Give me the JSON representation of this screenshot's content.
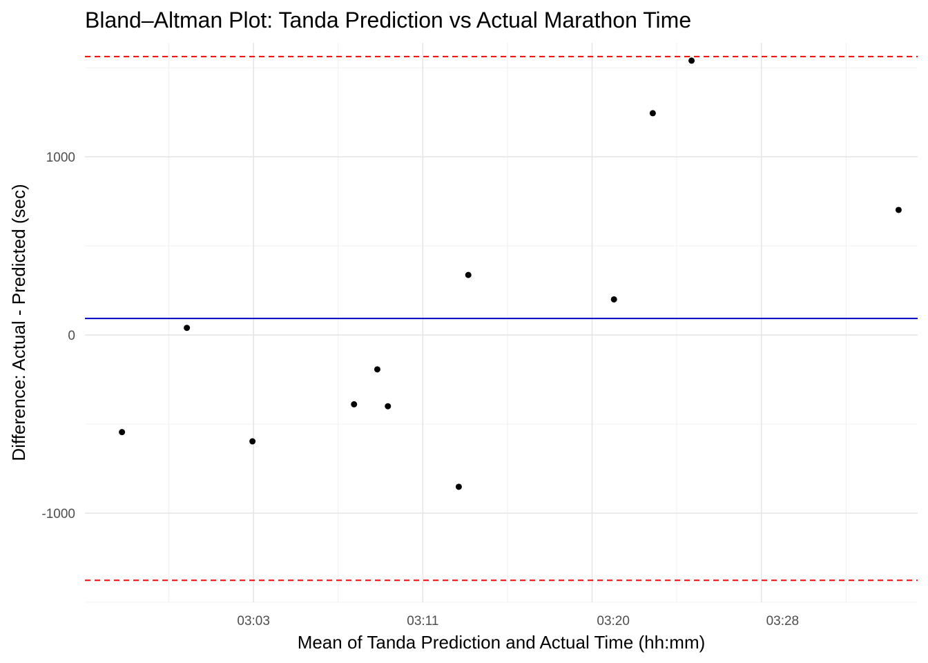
{
  "chart_data": {
    "type": "scatter",
    "title": "Bland–Altman Plot: Tanda Prediction vs Actual Marathon Time",
    "xlabel": "Mean of Tanda Prediction and Actual Time (hh:mm)",
    "ylabel": "Difference: Actual - Predicted (sec)",
    "x_unit": "hh:mm",
    "xlim": [
      "02:55:02",
      "03:34:23"
    ],
    "ylim": [
      -1500,
      1640
    ],
    "x_ticks": [
      "03:03",
      "03:11",
      "03:20",
      "03:28"
    ],
    "y_ticks": [
      -1000,
      0,
      1000
    ],
    "grid": true,
    "points": [
      {
        "x": "02:56:47",
        "y": -545
      },
      {
        "x": "02:59:51",
        "y": 40
      },
      {
        "x": "03:02:57",
        "y": -597
      },
      {
        "x": "03:07:45",
        "y": -389
      },
      {
        "x": "03:08:51",
        "y": -193
      },
      {
        "x": "03:09:21",
        "y": -400
      },
      {
        "x": "03:12:42",
        "y": -852
      },
      {
        "x": "03:13:09",
        "y": 337
      },
      {
        "x": "03:20:02",
        "y": 200
      },
      {
        "x": "03:21:52",
        "y": 1245
      },
      {
        "x": "03:23:42",
        "y": 1540
      },
      {
        "x": "03:33:29",
        "y": 702
      }
    ],
    "mean_line": {
      "y": 93,
      "color": "#0000cc"
    },
    "limits_of_agreement": {
      "upper": 1563,
      "lower": -1377,
      "color": "#ff0000",
      "style": "dashed"
    },
    "point_color": "#000000"
  }
}
